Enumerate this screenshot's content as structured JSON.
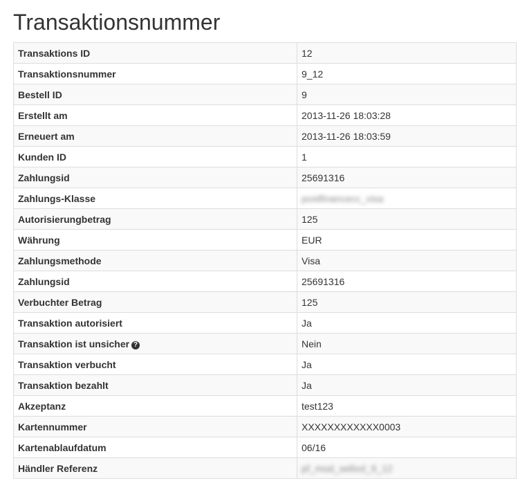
{
  "title": "Transaktionsnummer",
  "rows": [
    {
      "label": "Transaktions ID",
      "value": "12"
    },
    {
      "label": "Transaktionsnummer",
      "value": "9_12"
    },
    {
      "label": "Bestell ID",
      "value": "9"
    },
    {
      "label": "Erstellt am",
      "value": "2013-11-26 18:03:28"
    },
    {
      "label": "Erneuert am",
      "value": "2013-11-26 18:03:59"
    },
    {
      "label": "Kunden ID",
      "value": "1"
    },
    {
      "label": "Zahlungsid",
      "value": "25691316"
    },
    {
      "label": "Zahlungs-Klasse",
      "value": "postfinancecc_visa",
      "blurred": true
    },
    {
      "label": "Autorisierungbetrag",
      "value": "125"
    },
    {
      "label": "Währung",
      "value": "EUR"
    },
    {
      "label": "Zahlungsmethode",
      "value": "Visa"
    },
    {
      "label": "Zahlungsid",
      "value": "25691316"
    },
    {
      "label": "Verbuchter Betrag",
      "value": "125"
    },
    {
      "label": "Transaktion autorisiert",
      "value": "Ja"
    },
    {
      "label": "Transaktion ist unsicher",
      "value": "Nein",
      "icon": "question-circle-icon"
    },
    {
      "label": "Transaktion verbucht",
      "value": "Ja"
    },
    {
      "label": "Transaktion bezahlt",
      "value": "Ja"
    },
    {
      "label": "Akzeptanz",
      "value": "test123"
    },
    {
      "label": "Kartennummer",
      "value": "XXXXXXXXXXXX0003"
    },
    {
      "label": "Kartenablaufdatum",
      "value": "06/16"
    },
    {
      "label": "Händler Referenz",
      "value": "pf_mod_sellxxl_9_12",
      "blurred": true
    }
  ]
}
